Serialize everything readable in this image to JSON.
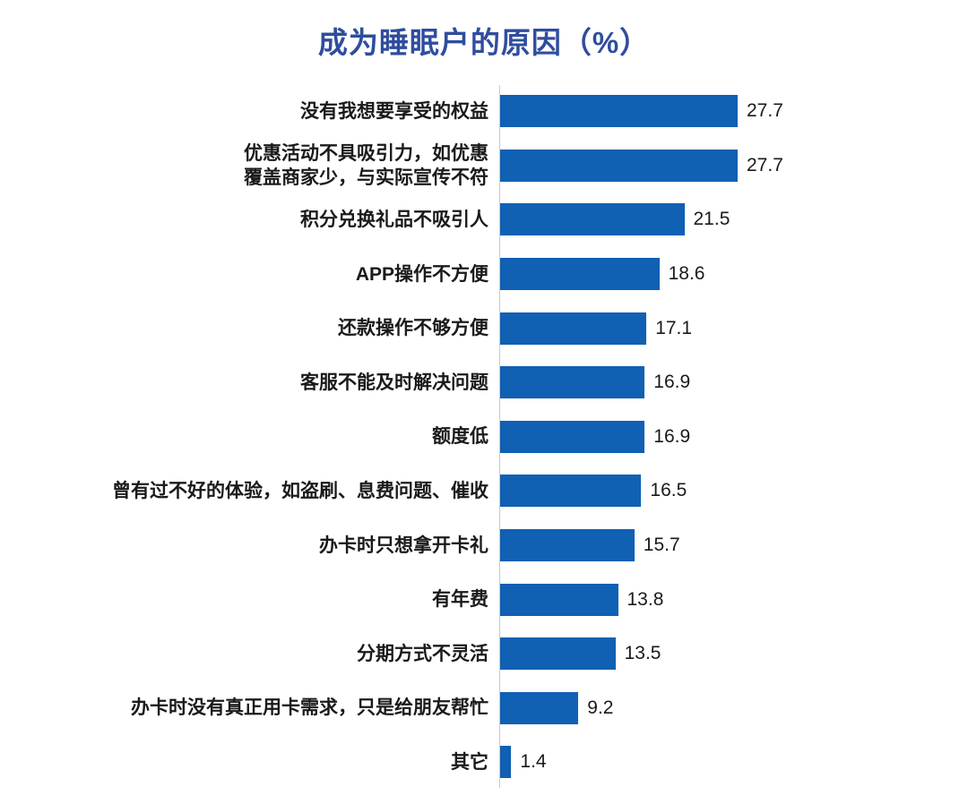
{
  "chart_data": {
    "type": "bar",
    "orientation": "horizontal",
    "title": "成为睡眠户的原因（%）",
    "categories": [
      "没有我想要享受的权益",
      "优惠活动不具吸引力，如优惠\n覆盖商家少，与实际宣传不符",
      "积分兑换礼品不吸引人",
      "APP操作不方便",
      "还款操作不够方便",
      "客服不能及时解决问题",
      "额度低",
      "曾有过不好的体验，如盗刷、息费问题、催收",
      "办卡时只想拿开卡礼",
      "有年费",
      "分期方式不灵活",
      "办卡时没有真正用卡需求，只是给朋友帮忙",
      "其它"
    ],
    "values": [
      27.7,
      27.7,
      21.5,
      18.6,
      17.1,
      16.9,
      16.9,
      16.5,
      15.7,
      13.8,
      13.5,
      9.2,
      1.4
    ],
    "xlabel": "",
    "ylabel": "",
    "xlim": [
      0,
      27.7
    ],
    "grid": false,
    "legend": "none",
    "data_labels": true,
    "colors": {
      "bar": "#1060B4",
      "title": "#2F4D9E",
      "text": "#1A1A1A",
      "axis_line": "#C9C9C9",
      "background": "#FFFFFF"
    }
  }
}
